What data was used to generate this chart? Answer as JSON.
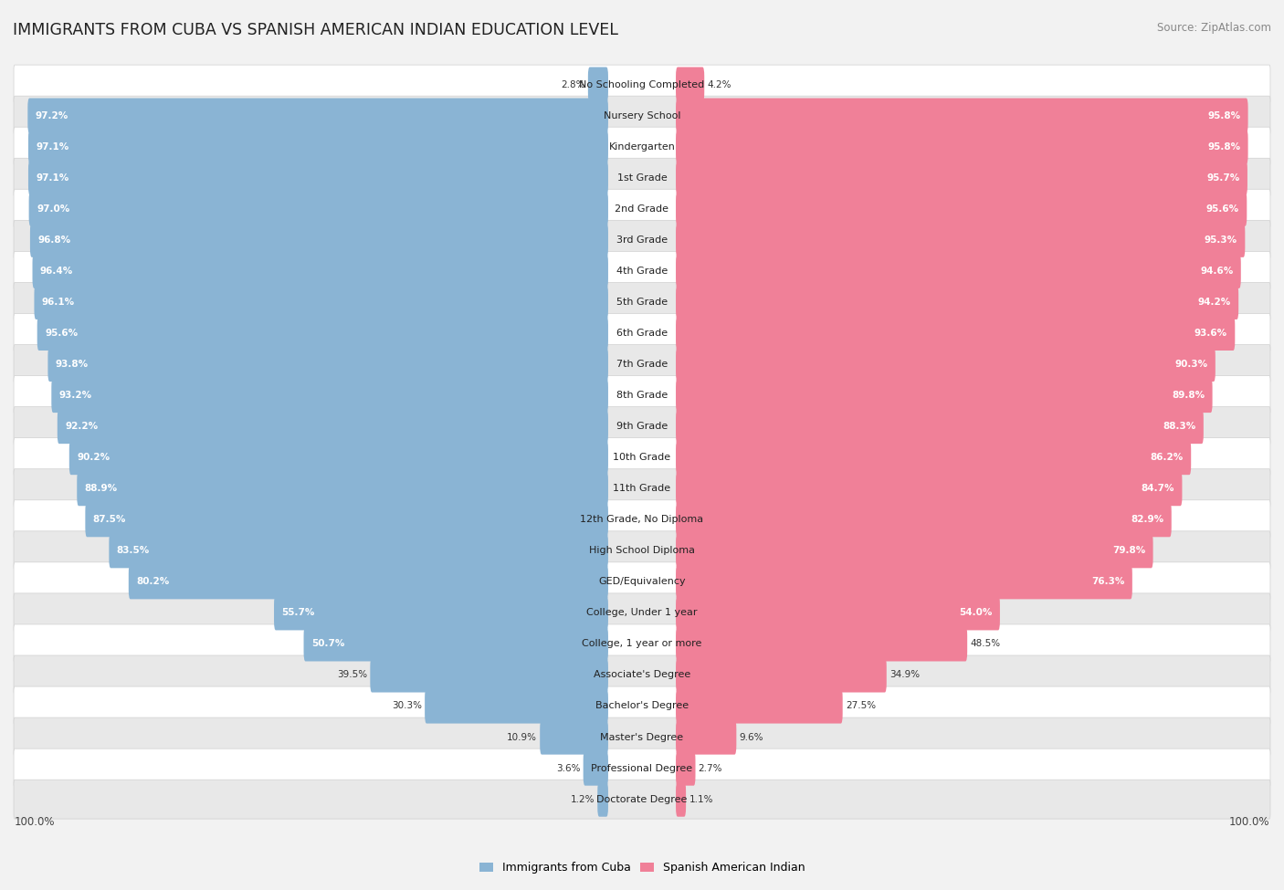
{
  "title": "IMMIGRANTS FROM CUBA VS SPANISH AMERICAN INDIAN EDUCATION LEVEL",
  "source": "Source: ZipAtlas.com",
  "categories": [
    "No Schooling Completed",
    "Nursery School",
    "Kindergarten",
    "1st Grade",
    "2nd Grade",
    "3rd Grade",
    "4th Grade",
    "5th Grade",
    "6th Grade",
    "7th Grade",
    "8th Grade",
    "9th Grade",
    "10th Grade",
    "11th Grade",
    "12th Grade, No Diploma",
    "High School Diploma",
    "GED/Equivalency",
    "College, Under 1 year",
    "College, 1 year or more",
    "Associate's Degree",
    "Bachelor's Degree",
    "Master's Degree",
    "Professional Degree",
    "Doctorate Degree"
  ],
  "cuba_values": [
    2.8,
    97.2,
    97.1,
    97.1,
    97.0,
    96.8,
    96.4,
    96.1,
    95.6,
    93.8,
    93.2,
    92.2,
    90.2,
    88.9,
    87.5,
    83.5,
    80.2,
    55.7,
    50.7,
    39.5,
    30.3,
    10.9,
    3.6,
    1.2
  ],
  "spanish_values": [
    4.2,
    95.8,
    95.8,
    95.7,
    95.6,
    95.3,
    94.6,
    94.2,
    93.6,
    90.3,
    89.8,
    88.3,
    86.2,
    84.7,
    82.9,
    79.8,
    76.3,
    54.0,
    48.5,
    34.9,
    27.5,
    9.6,
    2.7,
    1.1
  ],
  "cuba_color": "#8ab4d4",
  "spanish_color": "#f08098",
  "bg_color": "#f2f2f2",
  "row_white": "#ffffff",
  "row_gray": "#e8e8e8",
  "divider_color": "#d0d0d0",
  "label_fontsize": 8.0,
  "value_fontsize": 7.5,
  "title_fontsize": 12.5,
  "legend_fontsize": 9.0
}
